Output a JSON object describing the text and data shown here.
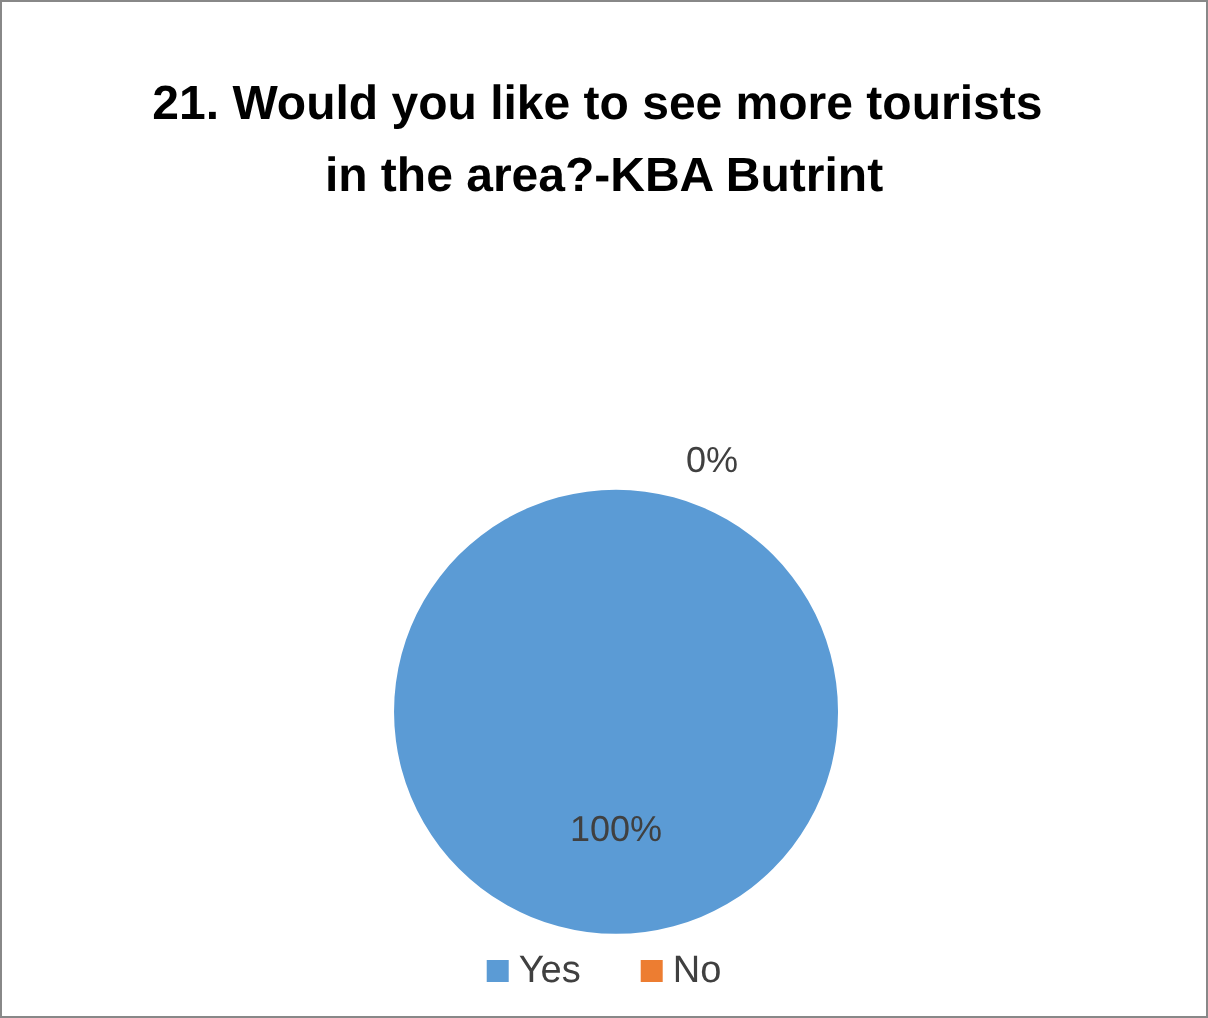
{
  "chart_data": {
    "type": "pie",
    "title": "21. Would you like to see more tourists in the area?-KBA Butrint",
    "categories": [
      "Yes",
      "No"
    ],
    "values": [
      100,
      0
    ],
    "colors": [
      "#5b9bd5",
      "#ed7d31"
    ],
    "value_labels": [
      "100%",
      "0%"
    ],
    "legend": "bottom"
  }
}
